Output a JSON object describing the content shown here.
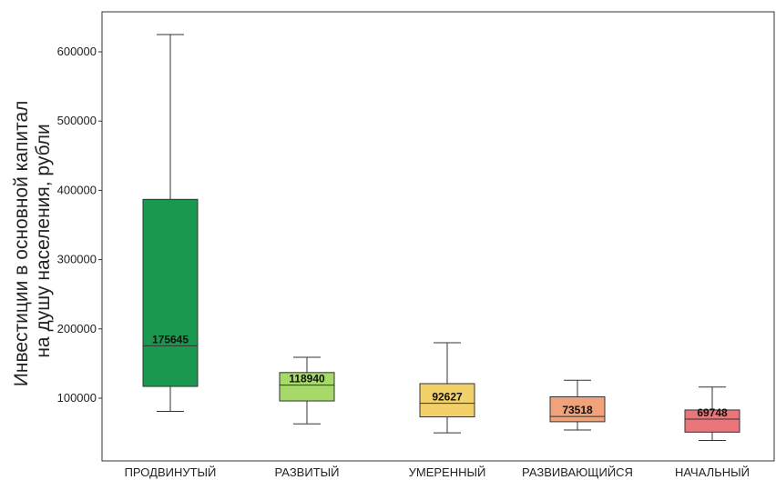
{
  "chart_data": {
    "type": "box",
    "title": "",
    "ylabel_lines": [
      "Инвестиции в основной капитал",
      "на душу населения, рубли"
    ],
    "xlabel": "",
    "ylim": [
      20000,
      650000
    ],
    "yticks": [
      100000,
      200000,
      300000,
      400000,
      500000,
      600000
    ],
    "grid": false,
    "categories": [
      "ПРОДВИНУТЫЙ",
      "РАЗВИТЫЙ",
      "УМЕРЕННЫЙ",
      "РАЗВИВАЮЩИЙСЯ",
      "НАЧАЛЬНЫЙ"
    ],
    "boxes": [
      {
        "category": "ПРОДВИНУТЫЙ",
        "whisker_low": 81000,
        "q1": 117000,
        "median": 175645,
        "q3": 387000,
        "whisker_high": 625000,
        "median_label": "175645",
        "color": "#1a9850"
      },
      {
        "category": "РАЗВИТЫЙ",
        "whisker_low": 63000,
        "q1": 96000,
        "median": 118940,
        "q3": 137000,
        "whisker_high": 159000,
        "median_label": "118940",
        "color": "#a6d96a"
      },
      {
        "category": "УМЕРЕННЫЙ",
        "whisker_low": 50000,
        "q1": 73000,
        "median": 92627,
        "q3": 121000,
        "whisker_high": 180000,
        "median_label": "92627",
        "color": "#f2d16b"
      },
      {
        "category": "РАЗВИВАЮЩИЙСЯ",
        "whisker_low": 54000,
        "q1": 66000,
        "median": 73518,
        "q3": 102000,
        "whisker_high": 126000,
        "median_label": "73518",
        "color": "#f0a27a"
      },
      {
        "category": "НАЧАЛЬНЫЙ",
        "whisker_low": 39000,
        "q1": 51000,
        "median": 69748,
        "q3": 83000,
        "whisker_high": 116000,
        "median_label": "69748",
        "color": "#e8767a"
      }
    ]
  }
}
